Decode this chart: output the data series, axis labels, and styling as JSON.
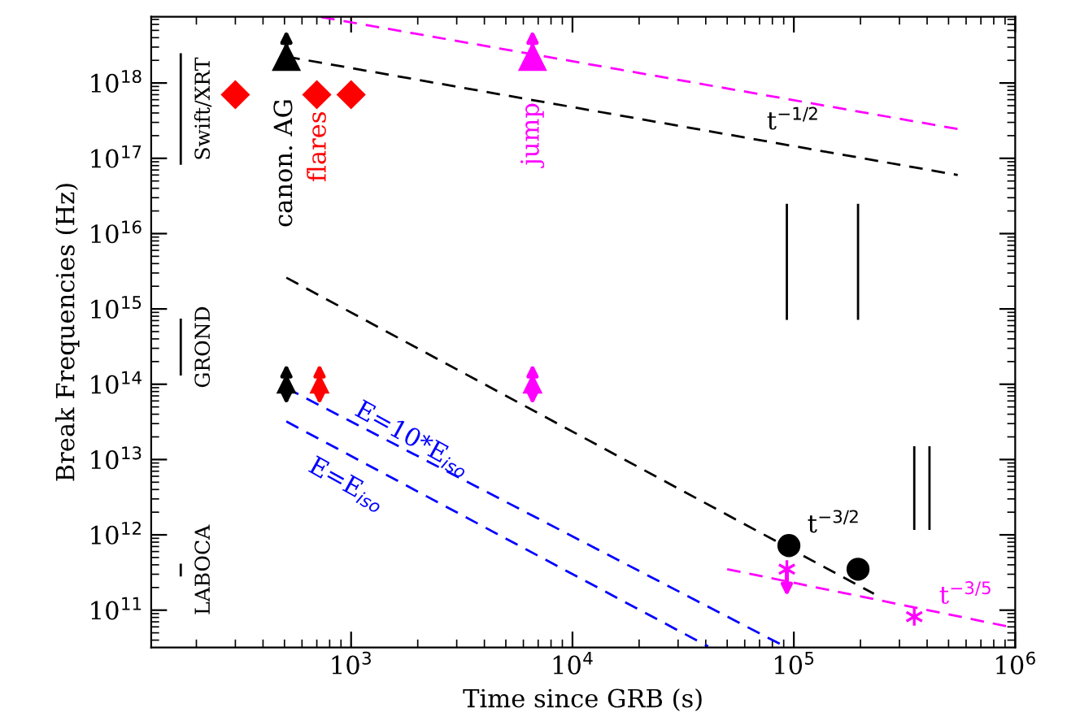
{
  "chart_data": {
    "type": "scatter",
    "xlabel": "Time since GRB (s)",
    "ylabel": "Break Frequencies (Hz)",
    "log": "xy",
    "grid": false,
    "legend": false,
    "xlim": [
      125,
      1000000
    ],
    "ylim": [
      32000000000,
      7600000000000000000
    ],
    "xticks": [
      {
        "value": 1000,
        "label": "10$^{3}$"
      },
      {
        "value": 10000,
        "label": "10$^{4}$"
      },
      {
        "value": 100000,
        "label": "10$^{5}$"
      },
      {
        "value": 1000000,
        "label": "10$^{6}$"
      }
    ],
    "yticks": [
      {
        "value": 100000000000.0,
        "label": "10$^{11}$"
      },
      {
        "value": 1000000000000.0,
        "label": "10$^{12}$"
      },
      {
        "value": 10000000000000.0,
        "label": "10$^{13}$"
      },
      {
        "value": 100000000000000.0,
        "label": "10$^{14}$"
      },
      {
        "value": 1000000000000000.0,
        "label": "10$^{15}$"
      },
      {
        "value": 1e+16,
        "label": "10$^{16}$"
      },
      {
        "value": 1e+17,
        "label": "10$^{17}$"
      },
      {
        "value": 1e+18,
        "label": "10$^{18}$"
      }
    ],
    "series": [
      {
        "marker": "diamond",
        "color": "#ff0000",
        "x": [
          300,
          700,
          1000
        ],
        "values": [
          7e+17,
          7e+17,
          7e+17
        ]
      },
      {
        "marker": "triangle",
        "color": "#000000",
        "x": [
          510
        ],
        "values": [
          2.2e+18
        ]
      },
      {
        "marker": "triangle",
        "color": "#ff00ff",
        "x": [
          6600
        ],
        "values": [
          2.2e+18
        ]
      },
      {
        "marker": "triangle",
        "color": "#000000",
        "x": [
          510
        ],
        "values": [
          100000000000000.0
        ]
      },
      {
        "marker": "triangle",
        "color": "#ff0000",
        "x": [
          720
        ],
        "values": [
          100000000000000.0
        ]
      },
      {
        "marker": "triangle",
        "color": "#ff00ff",
        "x": [
          6600
        ],
        "values": [
          100000000000000.0
        ]
      },
      {
        "marker": "circle",
        "color": "#000000",
        "x": [
          95000,
          195000
        ],
        "values": [
          720000000000.0,
          350000000000.0
        ]
      },
      {
        "marker": "cross",
        "color": "#ff00ff",
        "x": [
          93000,
          350000
        ],
        "values": [
          350000000000.0,
          82000000000.0
        ]
      },
      {
        "type": "line",
        "line_style": "dashed",
        "color": "#000000",
        "x": [
          510,
          550000
        ],
        "values": [
          2.24e+18,
          6e+16
        ]
      },
      {
        "type": "line",
        "line_style": "dashed",
        "color": "#ff00ff",
        "x": [
          733,
          550000
        ],
        "values": [
          7.5e+18,
          2.45e+17
        ]
      },
      {
        "type": "line",
        "line_style": "dashed",
        "color": "#000000",
        "x": [
          510,
          230000
        ],
        "values": [
          2600000000000000.0,
          165000000000.0
        ]
      },
      {
        "type": "line",
        "line_style": "dashed",
        "color": "#0000ff",
        "x": [
          510,
          91000
        ],
        "values": [
          89000000000000.0,
          33000000000.0
        ]
      },
      {
        "type": "line",
        "line_style": "dashed",
        "color": "#0000ff",
        "x": [
          510,
          41000
        ],
        "values": [
          32000000000000.0,
          33000000000.0
        ]
      },
      {
        "type": "line",
        "line_style": "dashed",
        "color": "#ff00ff",
        "x": [
          50000,
          1000000
        ],
        "values": [
          350000000000.0,
          58000000000.0
        ]
      },
      {
        "type": "line",
        "line_style": "solid",
        "color": "#000000",
        "x": [
          93000,
          93000
        ],
        "values": [
          2.4e+16,
          740000000000000.0
        ]
      },
      {
        "type": "line",
        "line_style": "solid",
        "color": "#000000",
        "x": [
          195000,
          195000
        ],
        "values": [
          2.4e+16,
          740000000000000.0
        ]
      },
      {
        "type": "line",
        "line_style": "solid",
        "color": "#000000",
        "x": [
          350000,
          350000
        ],
        "values": [
          14500000000000.0,
          1200000000000.0
        ]
      },
      {
        "type": "line",
        "line_style": "solid",
        "color": "#000000",
        "x": [
          410000,
          410000
        ],
        "values": [
          14500000000000.0,
          1200000000000.0
        ]
      },
      {
        "type": "line",
        "line_style": "solid",
        "color": "#000000",
        "name": "Swift/XRT",
        "x": [
          170,
          170
        ],
        "values": [
          2.4e+18,
          8.5e+16
        ]
      },
      {
        "type": "line",
        "line_style": "solid",
        "color": "#000000",
        "name": "GROND",
        "x": [
          170,
          170
        ],
        "values": [
          720000000000000.0,
          135000000000000.0
        ]
      },
      {
        "type": "line",
        "line_style": "solid",
        "color": "#000000",
        "name": "LABOCA",
        "x": [
          170,
          170
        ],
        "values": [
          400000000000.0,
          290000000000.0
        ]
      }
    ],
    "annotations": [
      "canon. AG",
      "flares",
      "jump",
      "t$^{−1/2}$",
      "t$^{−3/2}$",
      "t$^{−3/5}$",
      "E=10*E$_{iso}$",
      "E=E$_{iso}$"
    ]
  }
}
